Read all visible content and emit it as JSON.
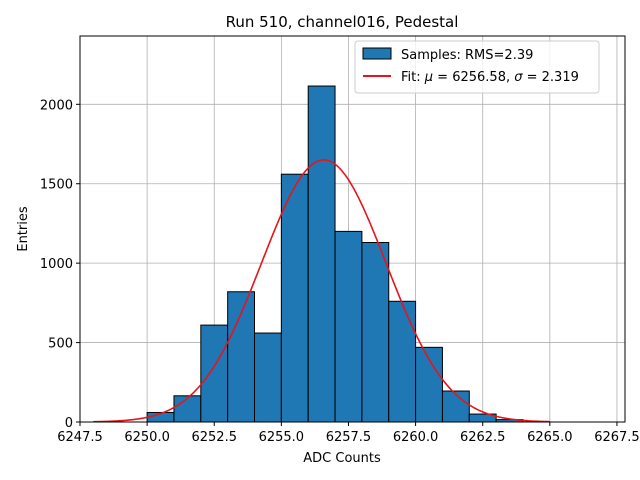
{
  "chart_data": {
    "type": "bar",
    "title": "Run 510, channel016, Pedestal",
    "xlabel": "ADC Counts",
    "ylabel": "Entries",
    "xlim": [
      6247.5,
      6267.8
    ],
    "ylim": [
      0,
      2430
    ],
    "grid": true,
    "x_ticks": [
      6247.5,
      6250.0,
      6252.5,
      6255.0,
      6257.5,
      6260.0,
      6262.5,
      6265.0,
      6267.5
    ],
    "x_tick_labels": [
      "6247.5",
      "6250.0",
      "6252.5",
      "6255.0",
      "6257.5",
      "6260.0",
      "6262.5",
      "6265.0",
      "6267.5"
    ],
    "y_ticks": [
      0,
      500,
      1000,
      1500,
      2000
    ],
    "y_tick_labels": [
      "0",
      "500",
      "1000",
      "1500",
      "2000"
    ],
    "histogram": {
      "name": "Samples: RMS=2.39",
      "color": "#1f77b4",
      "edge_color": "#000000",
      "bin_edges": [
        6250.0,
        6251.0,
        6252.0,
        6253.0,
        6254.0,
        6255.0,
        6256.0,
        6257.0,
        6258.0,
        6259.0,
        6260.0,
        6261.0,
        6262.0,
        6263.0,
        6264.0
      ],
      "counts": [
        60,
        165,
        610,
        820,
        560,
        1560,
        2115,
        1200,
        1130,
        760,
        470,
        195,
        50,
        15
      ]
    },
    "fit": {
      "name": "Fit: μ = 6256.58, σ = 2.319",
      "label_prefix": "Fit: ",
      "mu_symbol": "μ",
      "mu_text": " = 6256.58, ",
      "sigma_symbol": "σ",
      "sigma_text": " = 2.319",
      "color": "#e8141c",
      "mu": 6256.58,
      "sigma": 2.319,
      "amplitude": 1650,
      "x_range": [
        6248.0,
        6265.0
      ]
    },
    "legend_position": "top-right"
  }
}
